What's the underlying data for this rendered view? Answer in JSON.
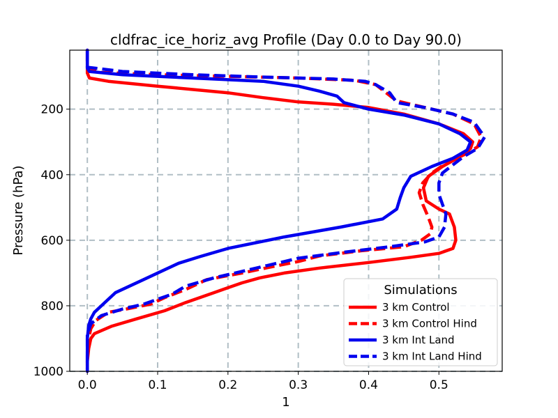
{
  "chart_data": {
    "type": "line",
    "title": "cldfrac_ice_horiz_avg Profile (Day 0.0 to Day 90.0)",
    "xlabel": "1",
    "ylabel": "Pressure (hPa)",
    "xlim": [
      -0.025,
      0.59
    ],
    "ylim": [
      1000,
      20
    ],
    "y_inverted": true,
    "grid": true,
    "x_ticks": [
      0.0,
      0.1,
      0.2,
      0.3,
      0.4,
      0.5
    ],
    "x_tick_labels": [
      "0.0",
      "0.1",
      "0.2",
      "0.3",
      "0.4",
      "0.5"
    ],
    "y_ticks": [
      200,
      400,
      600,
      800,
      1000
    ],
    "y_tick_labels": [
      "200",
      "400",
      "600",
      "800",
      "1000"
    ],
    "legend": {
      "title": "Simulations",
      "position": "lower-right"
    },
    "series": [
      {
        "name": "3 km Control",
        "color": "#ff0000",
        "style": "solid",
        "points": [
          [
            0.0,
            20
          ],
          [
            0.0,
            90
          ],
          [
            0.003,
            105
          ],
          [
            0.03,
            115
          ],
          [
            0.1,
            130
          ],
          [
            0.2,
            150
          ],
          [
            0.25,
            165
          ],
          [
            0.3,
            178
          ],
          [
            0.35,
            185
          ],
          [
            0.4,
            195
          ],
          [
            0.45,
            215
          ],
          [
            0.5,
            245
          ],
          [
            0.535,
            275
          ],
          [
            0.548,
            300
          ],
          [
            0.545,
            320
          ],
          [
            0.53,
            345
          ],
          [
            0.505,
            375
          ],
          [
            0.485,
            405
          ],
          [
            0.478,
            440
          ],
          [
            0.482,
            480
          ],
          [
            0.5,
            505
          ],
          [
            0.515,
            520
          ],
          [
            0.522,
            560
          ],
          [
            0.524,
            600
          ],
          [
            0.52,
            625
          ],
          [
            0.5,
            640
          ],
          [
            0.46,
            652
          ],
          [
            0.4,
            668
          ],
          [
            0.33,
            685
          ],
          [
            0.28,
            700
          ],
          [
            0.245,
            715
          ],
          [
            0.22,
            730
          ],
          [
            0.2,
            745
          ],
          [
            0.18,
            760
          ],
          [
            0.14,
            790
          ],
          [
            0.11,
            815
          ],
          [
            0.07,
            840
          ],
          [
            0.035,
            862
          ],
          [
            0.01,
            885
          ],
          [
            0.005,
            900
          ],
          [
            0.002,
            930
          ],
          [
            0.0,
            970
          ],
          [
            0.0,
            1000
          ]
        ]
      },
      {
        "name": "3 km Control Hind",
        "color": "#ff0000",
        "style": "dashed",
        "points": [
          [
            0.0,
            20
          ],
          [
            0.0,
            75
          ],
          [
            0.02,
            88
          ],
          [
            0.1,
            95
          ],
          [
            0.2,
            100
          ],
          [
            0.3,
            105
          ],
          [
            0.38,
            112
          ],
          [
            0.41,
            125
          ],
          [
            0.425,
            150
          ],
          [
            0.44,
            175
          ],
          [
            0.48,
            195
          ],
          [
            0.52,
            215
          ],
          [
            0.55,
            245
          ],
          [
            0.56,
            285
          ],
          [
            0.555,
            315
          ],
          [
            0.535,
            340
          ],
          [
            0.51,
            365
          ],
          [
            0.49,
            395
          ],
          [
            0.477,
            425
          ],
          [
            0.472,
            455
          ],
          [
            0.477,
            490
          ],
          [
            0.485,
            530
          ],
          [
            0.49,
            560
          ],
          [
            0.488,
            580
          ],
          [
            0.475,
            600
          ],
          [
            0.45,
            620
          ],
          [
            0.39,
            632
          ],
          [
            0.33,
            648
          ],
          [
            0.3,
            665
          ],
          [
            0.26,
            682
          ],
          [
            0.22,
            700
          ],
          [
            0.17,
            720
          ],
          [
            0.14,
            750
          ],
          [
            0.11,
            775
          ],
          [
            0.09,
            795
          ],
          [
            0.06,
            808
          ],
          [
            0.03,
            820
          ],
          [
            0.012,
            845
          ],
          [
            0.005,
            870
          ],
          [
            0.002,
            900
          ],
          [
            0.0,
            950
          ],
          [
            0.0,
            1000
          ]
        ]
      },
      {
        "name": "3 km Int Land",
        "color": "#0000ee",
        "style": "solid",
        "points": [
          [
            0.0,
            20
          ],
          [
            0.0,
            75
          ],
          [
            0.003,
            85
          ],
          [
            0.05,
            95
          ],
          [
            0.15,
            105
          ],
          [
            0.25,
            115
          ],
          [
            0.3,
            130
          ],
          [
            0.33,
            145
          ],
          [
            0.355,
            160
          ],
          [
            0.365,
            180
          ],
          [
            0.4,
            200
          ],
          [
            0.45,
            218
          ],
          [
            0.5,
            245
          ],
          [
            0.53,
            275
          ],
          [
            0.545,
            300
          ],
          [
            0.54,
            325
          ],
          [
            0.52,
            350
          ],
          [
            0.49,
            375
          ],
          [
            0.46,
            405
          ],
          [
            0.45,
            440
          ],
          [
            0.445,
            470
          ],
          [
            0.44,
            505
          ],
          [
            0.42,
            535
          ],
          [
            0.36,
            560
          ],
          [
            0.28,
            590
          ],
          [
            0.2,
            625
          ],
          [
            0.16,
            650
          ],
          [
            0.13,
            670
          ],
          [
            0.11,
            690
          ],
          [
            0.08,
            720
          ],
          [
            0.06,
            740
          ],
          [
            0.04,
            760
          ],
          [
            0.03,
            780
          ],
          [
            0.02,
            800
          ],
          [
            0.01,
            820
          ],
          [
            0.005,
            840
          ],
          [
            0.002,
            860
          ],
          [
            0.0,
            900
          ],
          [
            0.0,
            1000
          ]
        ]
      },
      {
        "name": "3 km Int Land Hind",
        "color": "#0000ee",
        "style": "dashed",
        "points": [
          [
            0.0,
            20
          ],
          [
            0.0,
            72
          ],
          [
            0.05,
            85
          ],
          [
            0.15,
            95
          ],
          [
            0.25,
            102
          ],
          [
            0.35,
            108
          ],
          [
            0.395,
            115
          ],
          [
            0.41,
            125
          ],
          [
            0.43,
            150
          ],
          [
            0.44,
            180
          ],
          [
            0.48,
            195
          ],
          [
            0.52,
            215
          ],
          [
            0.55,
            240
          ],
          [
            0.565,
            285
          ],
          [
            0.555,
            320
          ],
          [
            0.535,
            345
          ],
          [
            0.52,
            370
          ],
          [
            0.505,
            395
          ],
          [
            0.5,
            425
          ],
          [
            0.5,
            460
          ],
          [
            0.505,
            490
          ],
          [
            0.51,
            520
          ],
          [
            0.508,
            560
          ],
          [
            0.5,
            590
          ],
          [
            0.48,
            605
          ],
          [
            0.43,
            620
          ],
          [
            0.36,
            638
          ],
          [
            0.3,
            655
          ],
          [
            0.27,
            670
          ],
          [
            0.23,
            690
          ],
          [
            0.18,
            715
          ],
          [
            0.14,
            740
          ],
          [
            0.12,
            765
          ],
          [
            0.1,
            780
          ],
          [
            0.08,
            795
          ],
          [
            0.05,
            810
          ],
          [
            0.02,
            830
          ],
          [
            0.005,
            855
          ],
          [
            0.0,
            890
          ],
          [
            0.0,
            1000
          ]
        ]
      }
    ]
  }
}
